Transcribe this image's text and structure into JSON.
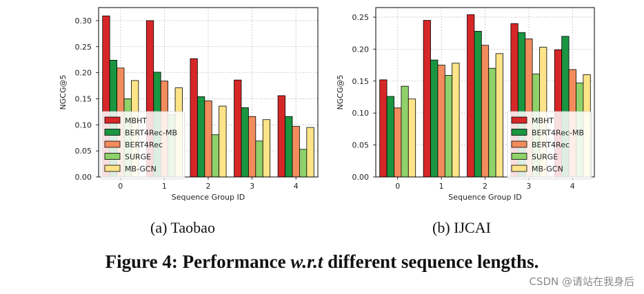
{
  "figure": {
    "subcaption_a": "(a)  Taobao",
    "subcaption_b": "(b)  IJCAI",
    "caption_prefix": "Figure 4: Performance ",
    "caption_italic": "w.r.t",
    "caption_suffix": " different sequence lengths.",
    "watermark": "CSDN @请站在我身后"
  },
  "colors": {
    "MBHT": "#d62728",
    "BERT4Rec-MB": "#1a9641",
    "BERT4Rec": "#f28c5c",
    "SURGE": "#8fd16a",
    "MB-GCN": "#fde488"
  },
  "chart_data": [
    {
      "type": "bar",
      "xlabel": "Sequence Group ID",
      "ylabel": "NGCG@5",
      "categories": [
        "0",
        "1",
        "2",
        "3",
        "4"
      ],
      "ylim": [
        0,
        0.325
      ],
      "yticks": [
        "0.00",
        "0.05",
        "0.10",
        "0.15",
        "0.20",
        "0.25",
        "0.30"
      ],
      "grid": true,
      "legend_position": "lower-left",
      "series": [
        {
          "name": "MBHT",
          "values": [
            0.309,
            0.3,
            0.227,
            0.186,
            0.156
          ]
        },
        {
          "name": "BERT4Rec-MB",
          "values": [
            0.224,
            0.201,
            0.154,
            0.133,
            0.116
          ]
        },
        {
          "name": "BERT4Rec",
          "values": [
            0.209,
            0.184,
            0.146,
            0.116,
            0.097
          ]
        },
        {
          "name": "SURGE",
          "values": [
            0.15,
            0.12,
            0.081,
            0.069,
            0.053
          ]
        },
        {
          "name": "MB-GCN",
          "values": [
            0.185,
            0.171,
            0.136,
            0.11,
            0.095
          ]
        }
      ]
    },
    {
      "type": "bar",
      "xlabel": "Sequence Group ID",
      "ylabel": "NGCG@5",
      "categories": [
        "0",
        "1",
        "2",
        "3",
        "4"
      ],
      "ylim": [
        0,
        0.265
      ],
      "yticks": [
        "0.00",
        "0.05",
        "0.10",
        "0.15",
        "0.20",
        "0.25"
      ],
      "grid": true,
      "legend_position": "lower-right",
      "series": [
        {
          "name": "MBHT",
          "values": [
            0.152,
            0.245,
            0.254,
            0.24,
            0.199
          ]
        },
        {
          "name": "BERT4Rec-MB",
          "values": [
            0.126,
            0.183,
            0.228,
            0.226,
            0.22
          ]
        },
        {
          "name": "BERT4Rec",
          "values": [
            0.108,
            0.175,
            0.206,
            0.216,
            0.168
          ]
        },
        {
          "name": "SURGE",
          "values": [
            0.142,
            0.159,
            0.17,
            0.161,
            0.147
          ]
        },
        {
          "name": "MB-GCN",
          "values": [
            0.122,
            0.178,
            0.193,
            0.203,
            0.16
          ]
        }
      ]
    }
  ]
}
